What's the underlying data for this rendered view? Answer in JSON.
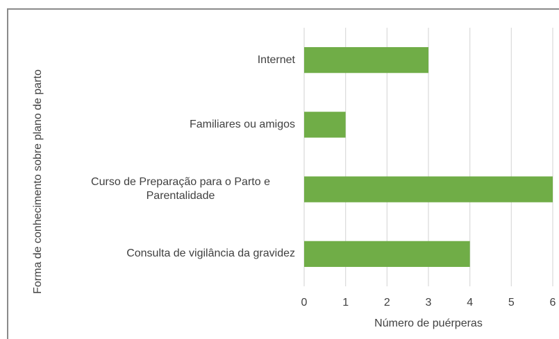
{
  "chart_data": {
    "type": "bar",
    "orientation": "horizontal",
    "categories": [
      "Internet",
      "Familiares ou amigos",
      "Curso de Preparação para o Parto e Parentalidade",
      "Consulta de vigilância da gravidez"
    ],
    "values": [
      3,
      1,
      6,
      4
    ],
    "color": "#70ad47",
    "xlim": [
      0,
      6
    ],
    "xticks": [
      0,
      1,
      2,
      3,
      4,
      5,
      6
    ],
    "grid": true,
    "xlabel": "Número de puérperas",
    "ylabel": "Forma de conhecimento sobre plano de parto"
  }
}
